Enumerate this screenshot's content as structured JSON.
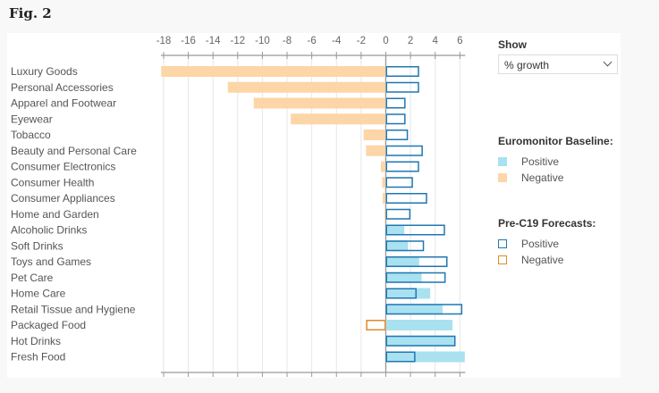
{
  "figure_label": "Fig. 2",
  "controls": {
    "show_label": "Show",
    "show_selected": "% growth"
  },
  "legend": {
    "baseline_title": "Euromonitor Baseline:",
    "baseline_items": [
      {
        "label": "Positive",
        "color": "#a9e1f0",
        "style": "fill"
      },
      {
        "label": "Negative",
        "color": "#fcd6a6",
        "style": "fill"
      }
    ],
    "forecast_title": "Pre-C19 Forecasts:",
    "forecast_items": [
      {
        "label": "Positive",
        "color": "#1f77b4",
        "style": "outline"
      },
      {
        "label": "Negative",
        "color": "#e08a2a",
        "style": "outline"
      }
    ]
  },
  "chart_data": {
    "type": "bar",
    "orientation": "horizontal",
    "title": "",
    "xlabel": "",
    "ylabel": "",
    "xlim": [
      -18,
      6
    ],
    "xticks": [
      -18,
      -16,
      -14,
      -12,
      -10,
      -8,
      -6,
      -4,
      -2,
      0,
      2,
      4,
      6
    ],
    "grid": true,
    "legend_position": "right",
    "categories": [
      "Luxury Goods",
      "Personal Accessories",
      "Apparel and Footwear",
      "Eyewear",
      "Tobacco",
      "Beauty and Personal Care",
      "Consumer Electronics",
      "Consumer Health",
      "Consumer Appliances",
      "Home and Garden",
      "Alcoholic Drinks",
      "Soft Drinks",
      "Toys and Games",
      "Pet Care",
      "Home Care",
      "Retail Tissue and Hygiene",
      "Packaged Food",
      "Hot Drinks",
      "Fresh Food"
    ],
    "series": [
      {
        "name": "Euromonitor Baseline",
        "style": "fill",
        "positive_color": "#a9e1f0",
        "negative_color": "#fcd6a6",
        "values": [
          -18.2,
          -12.8,
          -10.7,
          -7.7,
          -1.8,
          -1.6,
          -0.4,
          -0.3,
          -0.25,
          -0.1,
          1.5,
          1.8,
          2.7,
          2.9,
          3.6,
          4.6,
          5.4,
          5.6,
          6.4
        ]
      },
      {
        "name": "Pre-C19 Forecasts",
        "style": "outline",
        "positive_color": "#1f77b4",
        "negative_color": "#e08a2a",
        "values": [
          2.7,
          2.7,
          1.6,
          1.6,
          1.8,
          3.0,
          2.7,
          2.2,
          3.35,
          2.0,
          4.8,
          3.1,
          5.0,
          4.85,
          2.5,
          6.2,
          -1.6,
          5.65,
          2.4
        ]
      }
    ]
  }
}
